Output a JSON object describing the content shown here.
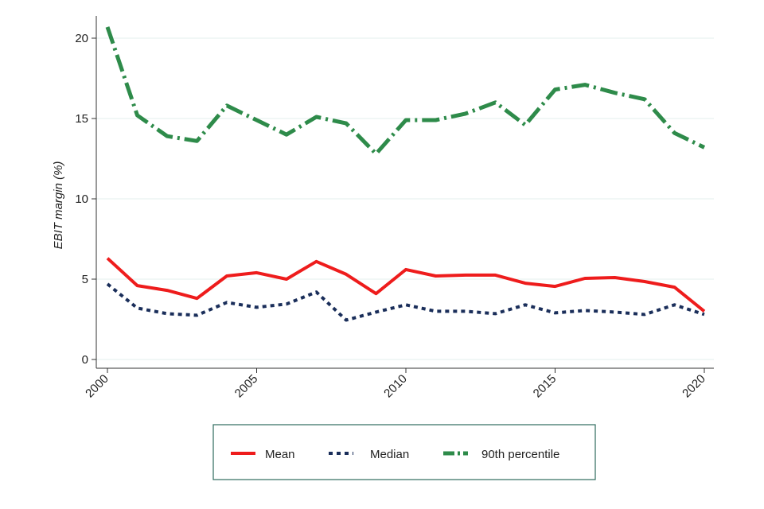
{
  "chart_data": {
    "type": "line",
    "title": "",
    "xlabel": "",
    "ylabel": "EBIT margin (%)",
    "xlim": [
      2000,
      2020
    ],
    "ylim": [
      0,
      21
    ],
    "x_ticks": [
      "2000",
      "2005",
      "2010",
      "2015",
      "2020"
    ],
    "y_ticks": [
      "0",
      "5",
      "10",
      "15",
      "20"
    ],
    "grid": true,
    "legend_position": "bottom",
    "x": [
      2000,
      2001,
      2002,
      2003,
      2004,
      2005,
      2006,
      2007,
      2008,
      2009,
      2010,
      2011,
      2012,
      2013,
      2014,
      2015,
      2016,
      2017,
      2018,
      2019,
      2020
    ],
    "series": [
      {
        "name": "Mean",
        "color": "#ee1c1c",
        "style": "solid",
        "values": [
          6.3,
          4.6,
          4.3,
          3.8,
          5.2,
          5.4,
          5.0,
          6.1,
          5.3,
          4.1,
          5.6,
          5.2,
          5.25,
          5.25,
          4.75,
          4.55,
          5.05,
          5.1,
          4.85,
          4.5,
          3.0
        ]
      },
      {
        "name": "Median",
        "color": "#1a2e5a",
        "style": "dotted",
        "values": [
          4.7,
          3.2,
          2.85,
          2.75,
          3.55,
          3.25,
          3.45,
          4.2,
          2.45,
          2.95,
          3.4,
          3.0,
          3.0,
          2.85,
          3.4,
          2.9,
          3.05,
          2.95,
          2.8,
          3.4,
          2.8
        ]
      },
      {
        "name": "90th percentile",
        "color": "#2e8b4a",
        "style": "dashdot",
        "values": [
          20.7,
          15.2,
          13.9,
          13.6,
          15.8,
          14.9,
          14.0,
          15.1,
          14.7,
          12.8,
          14.9,
          14.9,
          15.3,
          16.0,
          14.6,
          16.8,
          17.1,
          16.6,
          16.2,
          14.1,
          13.2
        ]
      }
    ]
  }
}
